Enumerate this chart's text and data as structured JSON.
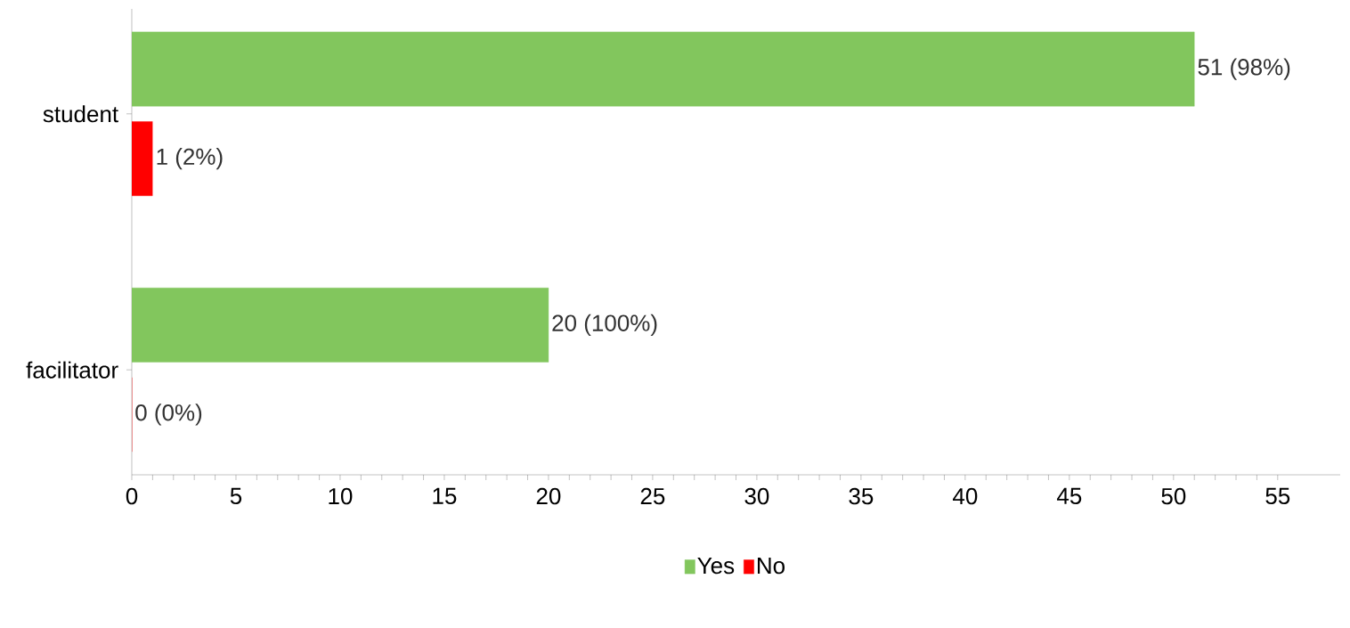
{
  "chart_data": {
    "type": "bar",
    "orientation": "horizontal",
    "categories": [
      "student",
      "facilitator"
    ],
    "series": [
      {
        "name": "Yes",
        "color": "#82c65d",
        "values": [
          51,
          20
        ],
        "value_labels": [
          "51 (98%)",
          "20 (100%)"
        ]
      },
      {
        "name": "No",
        "color": "#ff0000",
        "values": [
          1,
          0
        ],
        "value_labels": [
          "1 (2%)",
          "0 (0%)"
        ]
      }
    ],
    "xlim": [
      0,
      58
    ],
    "xticks": [
      0,
      5,
      10,
      15,
      20,
      25,
      30,
      35,
      40,
      45,
      50,
      55
    ],
    "grid": false,
    "legend": "bottom"
  }
}
